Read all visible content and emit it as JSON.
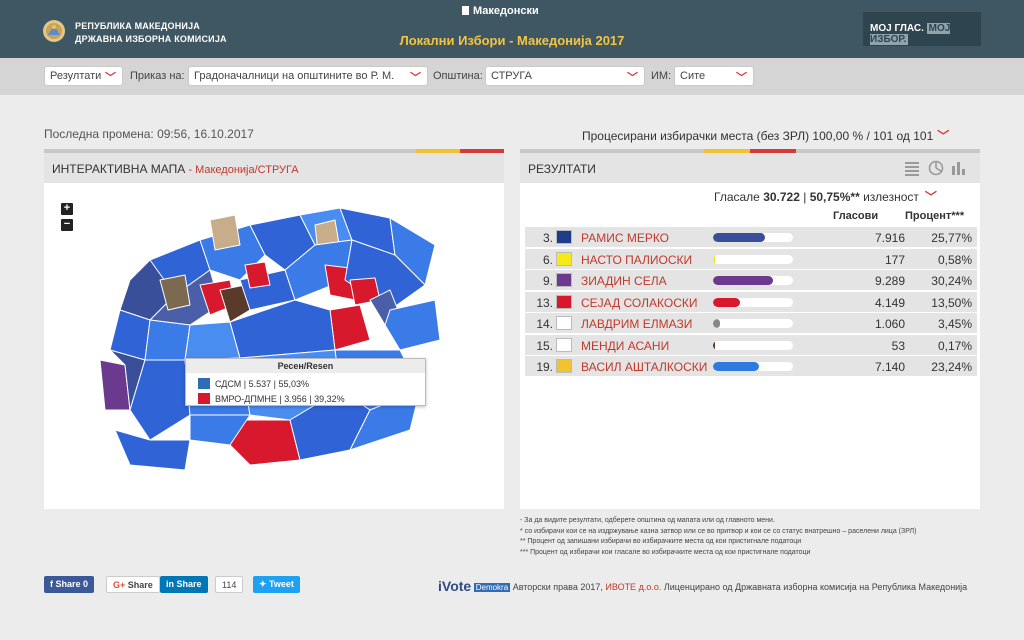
{
  "header": {
    "org_line1": "РЕПУБЛИКА МАКЕДОНИЈА",
    "org_line2": "ДРЖАВНА ИЗБОРНА КОМИСИЈА",
    "language": "Македонски",
    "title": "Локални Избори - Македонија 2017",
    "moj_glas_1": "МОЈ ГЛАС.",
    "moj_glas_2": "МОЈ ИЗБОР."
  },
  "filters": {
    "results": "Резултати",
    "show_label": "Приказ на:",
    "show_value": "Градоначалници на општините во Р. М.",
    "municipality_label": "Општина:",
    "municipality_value": "СТРУГА",
    "im_label": "ИМ:",
    "im_value": "Сите"
  },
  "status": {
    "last_change": "Последна промена: 09:56, 16.10.2017",
    "processed": "Процесирани избирачки места (без ЗРЛ) 100,00 % / 101 од 101"
  },
  "map_panel": {
    "title": "ИНТЕРАКТИВНА МАПА",
    "sep": " - ",
    "breadcrumb": "Македонија/СТРУГА",
    "zoom_in": "+",
    "zoom_out": "−",
    "tooltip": {
      "title": "Ресен/Resen",
      "rows": [
        {
          "party": "СДСМ",
          "text": "СДСМ | 5.537 | 55,03%"
        },
        {
          "party": "ВМРО-ДПМНЕ",
          "text": "ВМРО-ДПМНЕ | 3.956 | 39,32%"
        }
      ]
    }
  },
  "results_panel": {
    "title": "РЕЗУЛТАТИ",
    "turnout_prefix": "Гласале",
    "turnout_votes": "30.722",
    "turnout_sep": " | ",
    "turnout_pct": "50,75%**",
    "turnout_suffix": "излезност",
    "col_votes": "Гласови",
    "col_pct": "Процент***",
    "rows": [
      {
        "num": "3.",
        "name": "РАМИС МЕРКО",
        "votes": "7.916",
        "pct": "25,77%",
        "share": 0.2577,
        "color": "#3a4f9a"
      },
      {
        "num": "6.",
        "name": "НАСТО ПАЛИОСКИ",
        "votes": "177",
        "pct": "0,58%",
        "share": 0.0058,
        "color": "#f5ea14"
      },
      {
        "num": "9.",
        "name": "ЗИАДИН СЕЛА",
        "votes": "9.289",
        "pct": "30,24%",
        "share": 0.3024,
        "color": "#6b3a8e"
      },
      {
        "num": "13.",
        "name": "СЕЈАД СОЛАКОСКИ",
        "votes": "4.149",
        "pct": "13,50%",
        "share": 0.135,
        "color": "#d8182c"
      },
      {
        "num": "14.",
        "name": "ЛАВДРИМ ЕЛМАЗИ",
        "votes": "1.060",
        "pct": "3,45%",
        "share": 0.0345,
        "color": "#888888"
      },
      {
        "num": "15.",
        "name": "МЕНДИ АСАНИ",
        "votes": "53",
        "pct": "0,17%",
        "share": 0.0017,
        "color": "#5a3a2a"
      },
      {
        "num": "19.",
        "name": "ВАСИЛ АШТАЛКОСКИ",
        "votes": "7.140",
        "pct": "23,24%",
        "share": 0.2324,
        "color": "#2e7be0"
      }
    ]
  },
  "notes": [
    "- За да видите резултати, одберете општина од мапата или од главното мени.",
    "* со избирачи кои се на издржување казна затвор или се во притвор и кои се со статус внатрешно – раселени лица (ЗРЛ)",
    "** Процент од запишани избирачи во избирачките места од кои пристигнале податоци",
    "*** Процент од избирачи кои гласале во избирачките места од кои пристигнале податоци"
  ],
  "footer": {
    "fb_share": "Share 0",
    "gplus_share": "Share",
    "li_share": "Share",
    "li_count": "114",
    "tweet": "Tweet",
    "ivote": "iVote",
    "demokra": "Demokra",
    "copy1": "Авторски права 2017,",
    "firm": "ИВОТЕ д.о.о.",
    "copy2": "Лиценцирано од Државната изборна комисија на Република Македонија"
  }
}
